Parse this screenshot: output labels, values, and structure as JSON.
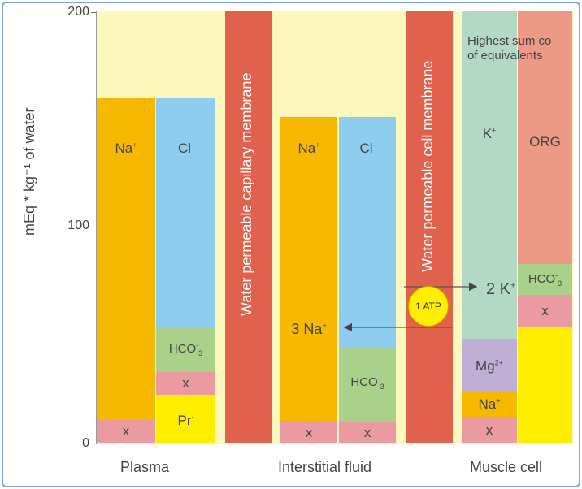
{
  "axis": {
    "y_label": "mEq * kg⁻¹ of water",
    "y_ticks": [
      "200",
      "100",
      "0"
    ]
  },
  "groups": {
    "plasma": "Plasma",
    "interstitial": "Interstitial fluid",
    "muscle": "Muscle cell"
  },
  "membranes": {
    "capillary": "Water permeable capillary membrane",
    "cell": "Water permeable cell membrane"
  },
  "plasma": {
    "na": "Na",
    "na_charge": "+",
    "x_bottom": "x",
    "cl": "Cl",
    "cl_charge": "-",
    "hco3": "HCO",
    "hco3_sub": "3",
    "hco3_charge": "-",
    "x_mid": "x",
    "pr": "Pr",
    "pr_charge": "-"
  },
  "interstitial": {
    "na": "Na",
    "na_charge": "+",
    "three_na": "3 Na",
    "three_na_charge": "+",
    "x_left": "x",
    "cl": "Cl",
    "cl_charge": "-",
    "hco3": "HCO",
    "hco3_sub": "3",
    "hco3_charge": "-",
    "x_right": "x"
  },
  "muscle": {
    "note": "Highest sum co",
    "note2": "of equivalents",
    "k": "K",
    "k_charge": "+",
    "two_k": "2 K",
    "two_k_charge": "+",
    "mg": "Mg",
    "mg_charge": "2+",
    "na": "Na",
    "na_charge": "+",
    "x_left": "x",
    "org": "ORG",
    "hco3": "HCO",
    "hco3_sub": "3",
    "hco3_charge": "-",
    "x_right": "x"
  },
  "atp": "1 ATP",
  "colors": {
    "na": "#f7b900",
    "cl": "#8ecdef",
    "hco3": "#a9d18a",
    "x": "#eb9aa1",
    "pr": "#ffee00",
    "membrane": "#e0614c",
    "k": "#b3d9c6",
    "org": "#ec9a85",
    "mg": "#bfaed6",
    "background": "#fbf7bd"
  }
}
